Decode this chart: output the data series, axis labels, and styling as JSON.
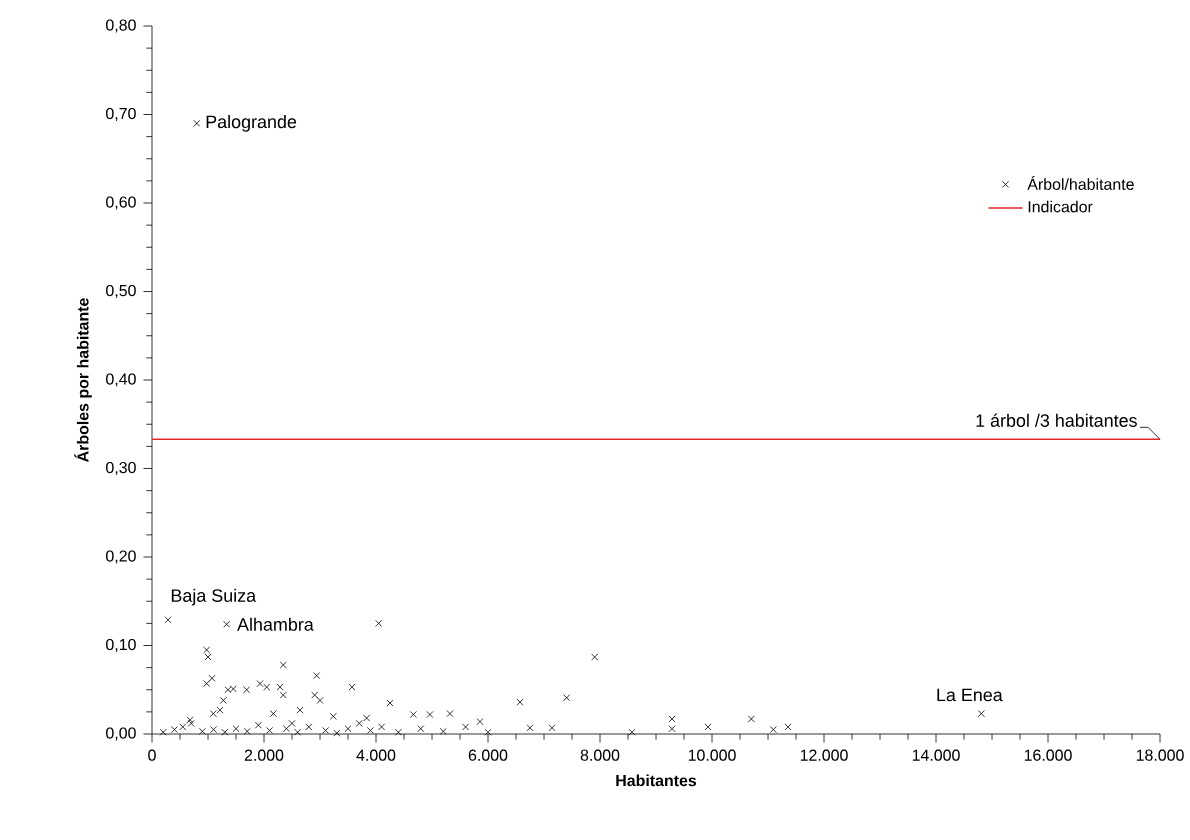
{
  "chart_data": {
    "type": "scatter",
    "xlabel": "Habitantes",
    "ylabel": "Árboles por habitante",
    "xlim": [
      0,
      18000
    ],
    "ylim": [
      0,
      0.8
    ],
    "xticks": [
      0,
      {
        "value": 2000,
        "label": "2.000"
      },
      {
        "value": 4000,
        "label": "4.000"
      },
      {
        "value": 6000,
        "label": "6.000"
      },
      {
        "value": 8000,
        "label": "8.000"
      },
      {
        "value": 10000,
        "label": "10.000"
      },
      {
        "value": 12000,
        "label": "12.000"
      },
      {
        "value": 14000,
        "label": "14.000"
      },
      {
        "value": 16000,
        "label": "16.000"
      },
      {
        "value": 18000,
        "label": "18.000"
      }
    ],
    "yticks": [
      {
        "value": 0,
        "label": "0,00"
      },
      {
        "value": 0.1,
        "label": "0,10"
      },
      {
        "value": 0.2,
        "label": "0,20"
      },
      {
        "value": 0.3,
        "label": "0,30"
      },
      {
        "value": 0.4,
        "label": "0,40"
      },
      {
        "value": 0.5,
        "label": "0,50"
      },
      {
        "value": 0.6,
        "label": "0,60"
      },
      {
        "value": 0.7,
        "label": "0,70"
      },
      {
        "value": 0.8,
        "label": "0,80"
      }
    ],
    "marker": "cross",
    "legend": "top right",
    "series": [
      {
        "name": "Árbol/habitante",
        "color": "#000000",
        "x": [
          800,
          286,
          1333,
          4048,
          976,
          1000,
          2345,
          2940,
          3571,
          976,
          1071,
          1357,
          1452,
          1690,
          1929,
          2048,
          2286,
          2345,
          2905,
          3000,
          1274,
          1214,
          1095,
          4250,
          2643,
          3238,
          2167,
          4667,
          4964,
          5321,
          5857,
          3833,
          679,
          7905,
          6571,
          7405,
          6750,
          7143,
          8571,
          9286,
          9286,
          9929,
          10702,
          11095,
          11357,
          14810,
          200,
          400,
          550,
          700,
          900,
          1100,
          1300,
          1500,
          1700,
          1900,
          2100,
          2400,
          2500,
          2600,
          2800,
          3100,
          3300,
          3500,
          3700,
          3900,
          4100,
          4400,
          4800,
          5200,
          5600,
          6000
        ],
        "values": [
          0.69,
          0.129,
          0.124,
          0.125,
          0.095,
          0.087,
          0.078,
          0.066,
          0.053,
          0.057,
          0.063,
          0.05,
          0.051,
          0.05,
          0.057,
          0.053,
          0.053,
          0.044,
          0.044,
          0.038,
          0.038,
          0.027,
          0.023,
          0.035,
          0.027,
          0.02,
          0.023,
          0.022,
          0.022,
          0.023,
          0.014,
          0.018,
          0.016,
          0.087,
          0.036,
          0.041,
          0.007,
          0.007,
          0.002,
          0.017,
          0.006,
          0.008,
          0.017,
          0.005,
          0.008,
          0.023,
          0.002,
          0.005,
          0.008,
          0.012,
          0.003,
          0.005,
          0.002,
          0.006,
          0.003,
          0.01,
          0.004,
          0.006,
          0.012,
          0.002,
          0.008,
          0.004,
          0.001,
          0.006,
          0.012,
          0.004,
          0.008,
          0.002,
          0.006,
          0.003,
          0.008,
          0.002
        ]
      },
      {
        "name": "Indicador",
        "type": "line",
        "color": "#e3262a",
        "marker": "none",
        "x": [
          0,
          18000
        ],
        "values": [
          0.333,
          0.333
        ]
      }
    ],
    "annotations": [
      {
        "text": "Palogrande",
        "x": 800,
        "y": 0.69
      },
      {
        "text": "Baja Suiza",
        "x": 286,
        "y": 0.129
      },
      {
        "text": "Alhambra",
        "x": 1333,
        "y": 0.124
      },
      {
        "text": "La Enea",
        "x": 14810,
        "y": 0.023
      },
      {
        "text": "1 árbol /3 habitantes",
        "x": 18000,
        "y": 0.333
      }
    ]
  }
}
